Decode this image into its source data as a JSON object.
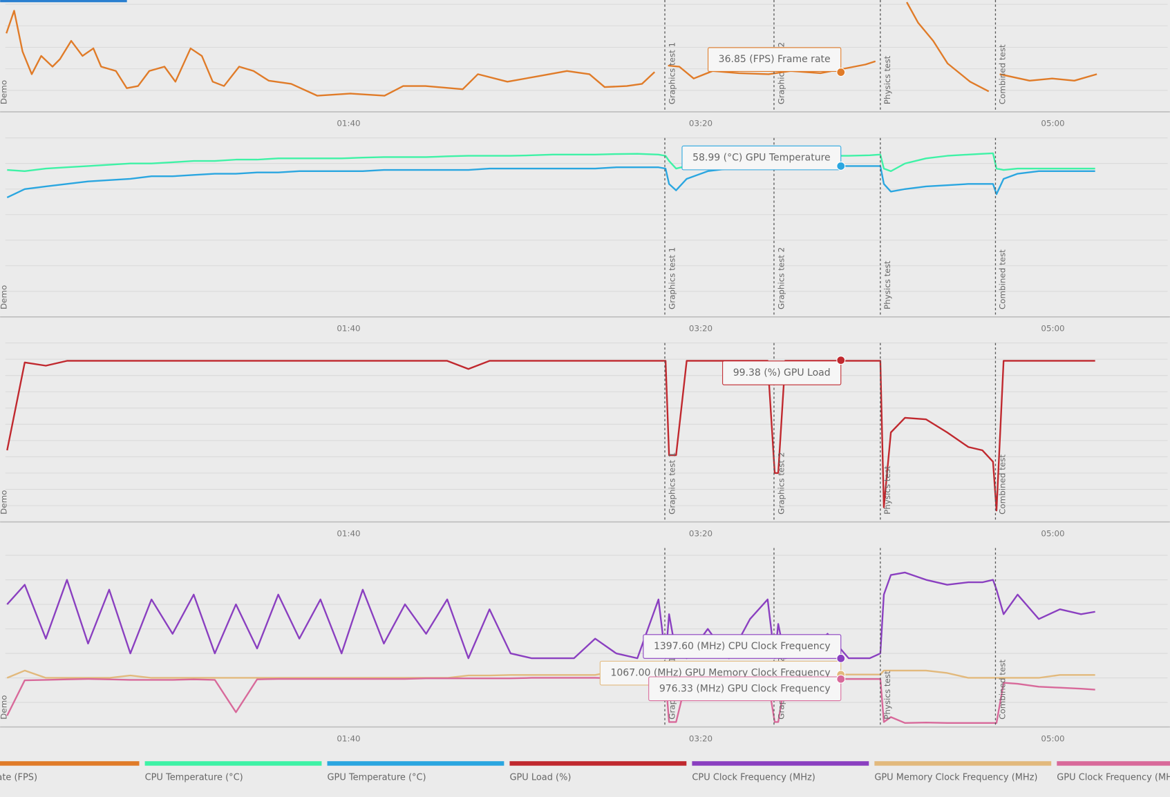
{
  "chart_data": [
    {
      "type": "line",
      "x": [
        2.8,
        5,
        7.4,
        10,
        12.7,
        15.9,
        18,
        21.2,
        24.4,
        27.5,
        29.7,
        33.9,
        37,
        40.2,
        43.4,
        47.7,
        50.8,
        55.1,
        58.3,
        61.4,
        64.6,
        68.9,
        73,
        77.3,
        83.7,
        91.1,
        100.6,
        110.2,
        115.5,
        121.8,
        132.4,
        136.7,
        145.1,
        153.6,
        162,
        168.4,
        172.7,
        179,
        183.3,
        186.9,
        188,
        190.7,
        193.9,
        198,
        203.4,
        210.8,
        219.3,
        225.6,
        234,
        240.5,
        246.8,
        249.6,
        252,
        258.5,
        261.7,
        266,
        270.1,
        276.5,
        281.8,
        283,
        284.9,
        293.4,
        299.8,
        306.1,
        312.5
      ],
      "series": [
        {
          "name": "Frame rate (FPS)",
          "color": "#e07b28",
          "values": [
            73,
            94,
            56,
            35,
            52,
            42,
            49,
            66,
            52,
            59,
            42,
            38,
            22,
            24,
            38,
            42,
            28,
            59,
            52,
            28,
            24,
            42,
            38,
            29,
            26,
            15,
            17,
            15,
            24,
            24,
            21,
            35,
            28,
            33,
            38,
            35,
            23,
            24,
            26,
            37,
            null,
            43,
            42,
            31,
            38,
            36,
            35,
            38,
            36,
            40,
            44,
            47,
            null,
            102,
            83,
            66,
            45,
            28,
            19,
            null,
            35,
            29,
            31,
            29,
            35
          ]
        }
      ],
      "xlim": [
        2.5,
        332.6
      ],
      "ylim": [
        0,
        104
      ],
      "xticks": [
        {
          "value": 100,
          "label": "01:40"
        },
        {
          "value": 200,
          "label": "03:20"
        },
        {
          "value": 300,
          "label": "05:00"
        }
      ],
      "yticks": [
        0,
        20,
        40,
        60,
        80,
        100
      ],
      "grid": true,
      "annotations": [
        {
          "x": 239.8,
          "value": 36.85,
          "label": "36.85 (FPS) Frame rate",
          "color": "#e07b28"
        }
      ]
    },
    {
      "type": "line",
      "x": [
        3,
        8,
        14,
        20,
        26,
        32,
        38,
        44,
        50,
        56,
        62,
        68,
        74,
        80,
        86,
        92,
        98,
        104,
        110,
        116,
        122,
        128,
        134,
        140,
        146,
        152,
        158,
        164,
        170,
        176,
        182,
        188,
        190,
        191,
        193,
        196,
        202,
        208,
        214,
        219,
        221,
        222,
        224,
        230,
        236,
        242,
        248,
        251,
        252,
        254,
        258,
        264,
        270,
        276,
        280,
        283,
        284,
        286,
        290,
        296,
        302,
        308,
        312
      ],
      "series": [
        {
          "name": "CPU Temperature (°C)",
          "color": "#3ef2a6",
          "values": [
            57.5,
            57,
            58,
            58.5,
            59,
            59.5,
            60,
            60,
            60.5,
            61,
            61,
            61.5,
            61.5,
            62,
            62,
            62,
            62,
            62.3,
            62.5,
            62.5,
            62.5,
            62.8,
            63,
            63,
            63,
            63.2,
            63.5,
            63.5,
            63.5,
            63.7,
            63.8,
            63.5,
            63,
            61,
            58,
            59,
            60,
            61,
            62,
            62.5,
            62.5,
            62.8,
            63,
            63,
            63,
            63,
            63.2,
            63.5,
            58,
            57,
            60,
            62,
            63,
            63.5,
            63.8,
            64,
            58,
            57.5,
            58,
            58,
            58,
            58,
            58
          ]
        },
        {
          "name": "GPU Temperature (°C)",
          "color": "#2aa6e0",
          "values": [
            46.7,
            50,
            51,
            52,
            53,
            53.5,
            54,
            55,
            55,
            55.5,
            56,
            56,
            56.5,
            56.5,
            57,
            57,
            57,
            57,
            57.5,
            57.5,
            57.5,
            57.5,
            57.5,
            58,
            58,
            58,
            58,
            58,
            58,
            58.5,
            58.5,
            58.5,
            58,
            52,
            49.5,
            54,
            57,
            58,
            58.5,
            59,
            59,
            59,
            59,
            59,
            59,
            59,
            59,
            59,
            52,
            49,
            50,
            51,
            51.5,
            52,
            52,
            52,
            48,
            54,
            56,
            57,
            57,
            57,
            57
          ]
        }
      ],
      "xlim": [
        2.5,
        332.6
      ],
      "ylim": [
        0,
        70
      ],
      "xticks": [
        {
          "value": 100,
          "label": "01:40"
        },
        {
          "value": 200,
          "label": "03:20"
        },
        {
          "value": 300,
          "label": "05:00"
        }
      ],
      "yticks": [
        0,
        10,
        20,
        30,
        40,
        50,
        60,
        70
      ],
      "grid": true,
      "annotations": [
        {
          "x": 239.8,
          "value": 58.99,
          "label": "58.99 (°C) GPU Temperature",
          "color": "#2aa6e0"
        }
      ]
    },
    {
      "type": "line",
      "x": [
        3,
        8,
        14,
        20,
        26,
        32,
        38,
        44,
        50,
        56,
        62,
        68,
        74,
        80,
        86,
        92,
        98,
        104,
        110,
        116,
        122,
        128,
        134,
        140,
        146,
        152,
        158,
        164,
        170,
        176,
        182,
        188,
        190,
        191,
        193,
        196,
        202,
        208,
        214,
        219,
        221,
        222,
        224,
        230,
        236,
        242,
        248,
        251,
        252,
        254,
        258,
        264,
        270,
        276,
        280,
        283,
        284,
        286,
        290,
        296,
        302,
        308,
        312
      ],
      "series": [
        {
          "name": "GPU Load (%)",
          "color": "#c0282e",
          "values": [
            44,
            98,
            96,
            99,
            99,
            99,
            99,
            99,
            99,
            99,
            99,
            99,
            99,
            99,
            99,
            99,
            99,
            99,
            99,
            99,
            99,
            99,
            94,
            99,
            99,
            99,
            99,
            99,
            99,
            99,
            99,
            99,
            99,
            41,
            41,
            99,
            99,
            99,
            99,
            99,
            30,
            30,
            99,
            99,
            99,
            99,
            99,
            99,
            9,
            55,
            64,
            63,
            55,
            46,
            44,
            37,
            7,
            99,
            99,
            99,
            99,
            99,
            99
          ]
        }
      ],
      "xlim": [
        2.5,
        332.6
      ],
      "ylim": [
        0,
        110
      ],
      "xticks": [
        {
          "value": 100,
          "label": "01:40"
        },
        {
          "value": 200,
          "label": "03:20"
        },
        {
          "value": 300,
          "label": "05:00"
        }
      ],
      "yticks": [
        0,
        10,
        20,
        30,
        40,
        50,
        60,
        70,
        80,
        90,
        100,
        110
      ],
      "grid": true,
      "annotations": [
        {
          "x": 239.8,
          "value": 99.38,
          "label": "99.38 (%) GPU Load",
          "color": "#c0282e"
        }
      ]
    },
    {
      "type": "line",
      "x": [
        3,
        8,
        14,
        20,
        26,
        32,
        38,
        44,
        50,
        56,
        62,
        68,
        74,
        80,
        86,
        92,
        98,
        104,
        110,
        116,
        122,
        128,
        134,
        140,
        146,
        152,
        158,
        164,
        170,
        176,
        182,
        188,
        190,
        191,
        193,
        196,
        202,
        208,
        214,
        219,
        221,
        222,
        224,
        230,
        236,
        242,
        248,
        251,
        252,
        254,
        258,
        264,
        270,
        276,
        280,
        283,
        284,
        286,
        290,
        296,
        302,
        308,
        312
      ],
      "series": [
        {
          "name": "CPU Clock Frequency (MHz)",
          "color": "#8a3fc0",
          "values": [
            2500,
            2900,
            1800,
            3000,
            1700,
            2800,
            1500,
            2600,
            1900,
            2700,
            1500,
            2500,
            1600,
            2700,
            1800,
            2600,
            1500,
            2800,
            1700,
            2500,
            1900,
            2600,
            1400,
            2400,
            1500,
            1400,
            1400,
            1400,
            1800,
            1500,
            1400,
            2600,
            1400,
            2300,
            1500,
            1400,
            2000,
            1400,
            2200,
            2600,
            1400,
            2100,
            1400,
            1500,
            1900,
            1400,
            1400,
            1500,
            2700,
            3100,
            3150,
            3000,
            2900,
            2950,
            2950,
            3000,
            2800,
            2300,
            2700,
            2200,
            2400,
            2300,
            2350
          ]
        },
        {
          "name": "GPU Memory Clock Frequency (MHz)",
          "color": "#e2b97c",
          "values": [
            1000,
            1150,
            1000,
            1000,
            1000,
            1000,
            1050,
            1000,
            1000,
            1000,
            1000,
            1000,
            1000,
            1000,
            1000,
            1000,
            1000,
            1000,
            1000,
            1000,
            1000,
            1000,
            1050,
            1050,
            1060,
            1060,
            1060,
            1060,
            1060,
            1140,
            1060,
            1060,
            1060,
            1067,
            1067,
            1067,
            1067,
            1067,
            1067,
            1067,
            1067,
            1067,
            1067,
            1067,
            1067,
            1067,
            1067,
            1067,
            1150,
            1150,
            1150,
            1150,
            1100,
            1000,
            1000,
            1000,
            1000,
            1000,
            1000,
            1000,
            1060,
            1060,
            1060
          ]
        },
        {
          "name": "GPU Clock Frequency (MHz)",
          "color": "#d8699a",
          "values": [
            230,
            950,
            960,
            970,
            980,
            970,
            960,
            960,
            960,
            970,
            960,
            300,
            970,
            980,
            980,
            980,
            980,
            980,
            980,
            980,
            990,
            990,
            990,
            990,
            990,
            1000,
            1000,
            1000,
            1000,
            990,
            990,
            990,
            980,
            100,
            100,
            980,
            980,
            980,
            980,
            980,
            100,
            100,
            976,
            976,
            976,
            976,
            976,
            976,
            100,
            200,
            80,
            90,
            80,
            80,
            80,
            80,
            80,
            900,
            880,
            820,
            800,
            780,
            760
          ]
        }
      ],
      "xlim": [
        2.5,
        332.6
      ],
      "ylim": [
        0,
        3650
      ],
      "xticks": [
        {
          "value": 100,
          "label": "01:40"
        },
        {
          "value": 200,
          "label": "03:20"
        },
        {
          "value": 300,
          "label": "05:00"
        }
      ],
      "yticks": [
        0,
        500,
        1000,
        1500,
        2000,
        2500,
        3000,
        3500
      ],
      "grid": true,
      "annotations": [
        {
          "x": 239.8,
          "value": 1397.6,
          "label": "1397.60 (MHz) CPU Clock Frequency",
          "color": "#8a3fc0"
        },
        {
          "x": 239.8,
          "value": 1067,
          "label": "1067.00 (MHz) GPU Memory Clock Frequency",
          "color": "#e2b97c"
        },
        {
          "x": 239.8,
          "value": 976.33,
          "label": "976.33 (MHz) GPU Clock Frequency",
          "color": "#d8699a"
        }
      ]
    }
  ],
  "markers": [
    {
      "x": 0,
      "label": "Demo"
    },
    {
      "x": 189.8,
      "label": "Graphics test 1"
    },
    {
      "x": 220.8,
      "label": "Graphics test 2"
    },
    {
      "x": 251,
      "label": "Physics test"
    },
    {
      "x": 283.7,
      "label": "Combined test"
    }
  ]
}
